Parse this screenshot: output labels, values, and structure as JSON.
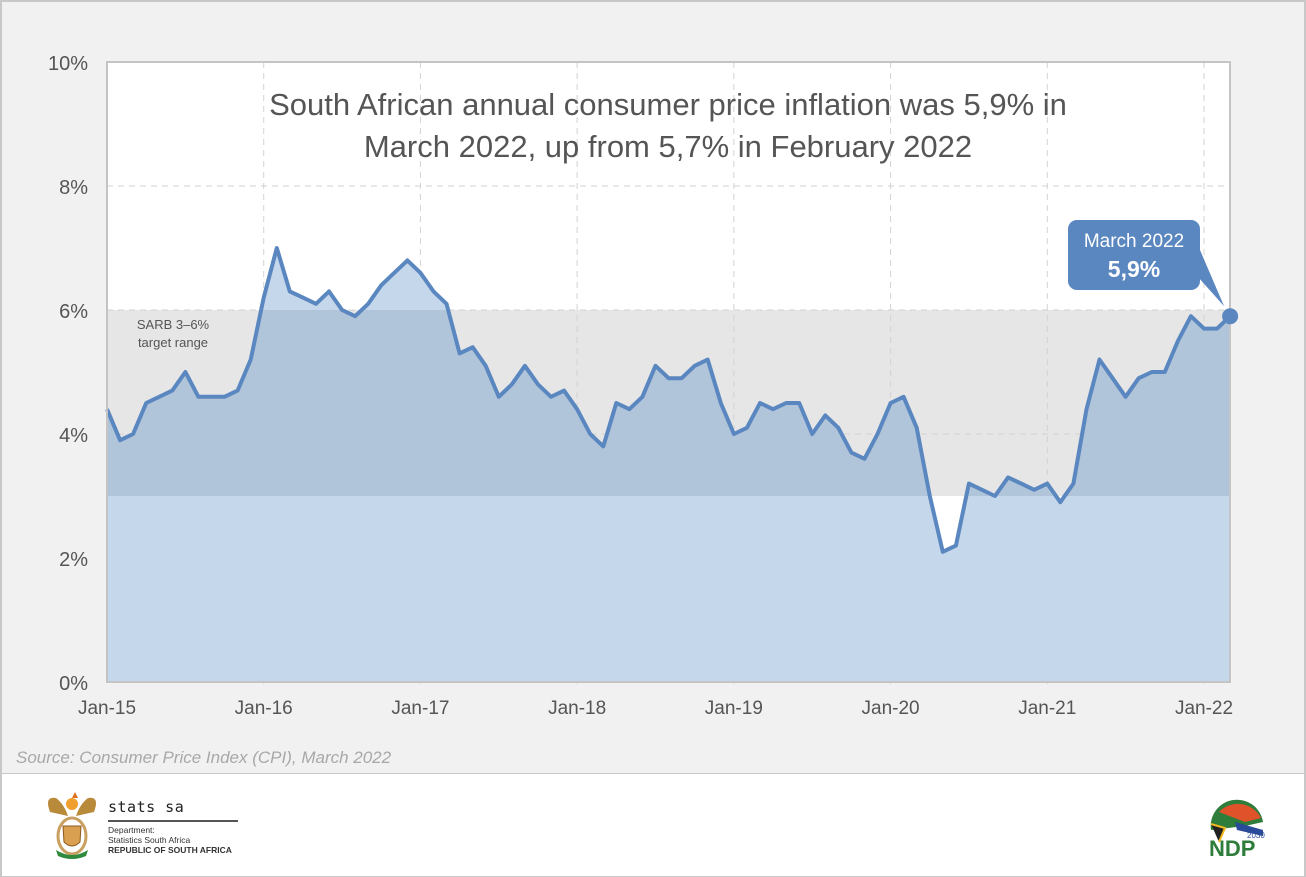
{
  "chart_data": {
    "type": "area",
    "title": "South African annual consumer price inflation was 5,9% in March 2022, up from 5,7% in February 2022",
    "title_lines": [
      "South African annual consumer price inflation was 5,9% in",
      "March 2022, up from 5,7% in February 2022"
    ],
    "xlabel": "",
    "ylabel": "",
    "ylim": [
      0,
      10
    ],
    "yticks": [
      0,
      2,
      4,
      6,
      8,
      10
    ],
    "ytick_labels": [
      "0%",
      "2%",
      "4%",
      "6%",
      "8%",
      "10%"
    ],
    "xtick_labels": [
      "Jan-15",
      "Jan-16",
      "Jan-17",
      "Jan-18",
      "Jan-19",
      "Jan-20",
      "Jan-21",
      "Jan-22"
    ],
    "xtick_month_index": [
      0,
      12,
      24,
      36,
      48,
      60,
      72,
      84
    ],
    "grid": true,
    "start": "Jan-15",
    "end": "Mar-22",
    "series": [
      {
        "name": "Annual CPI inflation (%)",
        "color": "#5b87c0",
        "fill": "#c5d7ea",
        "values": [
          4.4,
          3.9,
          4.0,
          4.5,
          4.6,
          4.7,
          5.0,
          4.6,
          4.6,
          4.6,
          4.7,
          5.2,
          6.2,
          7.0,
          6.3,
          6.2,
          6.1,
          6.3,
          6.0,
          5.9,
          6.1,
          6.4,
          6.6,
          6.8,
          6.6,
          6.3,
          6.1,
          5.3,
          5.4,
          5.1,
          4.6,
          4.8,
          5.1,
          4.8,
          4.6,
          4.7,
          4.4,
          4.0,
          3.8,
          4.5,
          4.4,
          4.6,
          5.1,
          4.9,
          4.9,
          5.1,
          5.2,
          4.5,
          4.0,
          4.1,
          4.5,
          4.4,
          4.5,
          4.5,
          4.0,
          4.3,
          4.1,
          3.7,
          3.6,
          4.0,
          4.5,
          4.6,
          4.1,
          3.0,
          2.1,
          2.2,
          3.2,
          3.1,
          3.0,
          3.3,
          3.2,
          3.1,
          3.2,
          2.9,
          3.2,
          4.4,
          5.2,
          4.9,
          4.6,
          4.9,
          5.0,
          5.0,
          5.5,
          5.9,
          5.7,
          5.7,
          5.9
        ]
      }
    ],
    "band": {
      "label_line1": "SARB 3–6%",
      "label_line2": "target range",
      "low": 3,
      "high": 6,
      "color": "#e6e6e6"
    },
    "callout": {
      "line1": "March 2022",
      "line2": "5,9%",
      "value": 5.9,
      "color": "#5b87c0"
    }
  },
  "source": "Source: Consumer Price Index (CPI), March 2022",
  "footer": {
    "org_name": "stats sa",
    "dept_line1": "Department:",
    "dept_line2": "Statistics South Africa",
    "dept_line3": "REPUBLIC OF SOUTH AFRICA",
    "ndp_year": "2030",
    "ndp_text": "NDP"
  }
}
